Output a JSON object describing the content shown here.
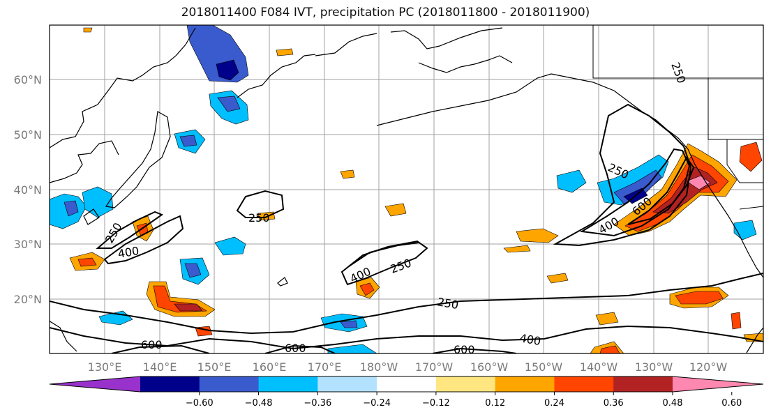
{
  "title": "2018011400 F084 IVT, precipitation PC (2018011800 - 2018011900)",
  "map": {
    "lat_ticks": [
      "60°N",
      "50°N",
      "40°N",
      "30°N",
      "20°N"
    ],
    "lon_ticks": [
      "130°E",
      "140°E",
      "150°E",
      "160°E",
      "170°E",
      "180°W",
      "170°W",
      "160°W",
      "150°W",
      "140°W",
      "130°W",
      "120°W"
    ],
    "contour_labels": [
      {
        "text": "250"
      },
      {
        "text": "250"
      },
      {
        "text": "400"
      },
      {
        "text": "250"
      },
      {
        "text": "400"
      },
      {
        "text": "250"
      },
      {
        "text": "250"
      },
      {
        "text": "400"
      },
      {
        "text": "600"
      },
      {
        "text": "400"
      },
      {
        "text": "600"
      },
      {
        "text": "600"
      },
      {
        "text": "600"
      },
      {
        "text": "250"
      }
    ]
  },
  "colorbar": {
    "colors": [
      "#9932cc",
      "#00008b",
      "#3a5bcd",
      "#00bfff",
      "#b2e2ff",
      "#ffffff",
      "#ffe680",
      "#ffa500",
      "#ff4500",
      "#b22222",
      "#ff88b0"
    ],
    "tick_labels": [
      "−0.60",
      "−0.48",
      "−0.36",
      "−0.24",
      "−0.12",
      "0.12",
      "0.24",
      "0.36",
      "0.48",
      "0.60"
    ]
  }
}
